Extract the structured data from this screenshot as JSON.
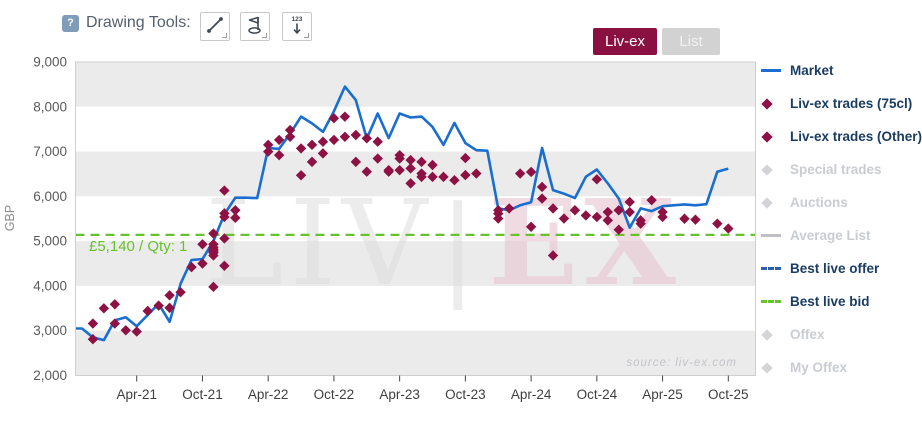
{
  "toolbar": {
    "help_label": "?",
    "label": "Drawing Tools:",
    "tools": [
      "trend-line",
      "flag",
      "numbered-arrow"
    ]
  },
  "view_toggle": {
    "options": [
      "Liv-ex",
      "List"
    ],
    "active": "Liv-ex"
  },
  "legend": [
    {
      "label": "Market",
      "type": "line",
      "color": "#1a6ed0",
      "active": true
    },
    {
      "label": "Liv-ex trades (75cl)",
      "type": "diamond",
      "color": "#8e1144",
      "active": true
    },
    {
      "label": "Liv-ex trades (Other)",
      "type": "diamond",
      "color": "#8e1144",
      "active": true
    },
    {
      "label": "Special trades",
      "type": "diamond",
      "color": "#d4d4d8",
      "active": false
    },
    {
      "label": "Auctions",
      "type": "diamond",
      "color": "#d4d4d8",
      "active": false
    },
    {
      "label": "Average List",
      "type": "line",
      "color": "#c0c0c4",
      "active": false
    },
    {
      "label": "Best live offer",
      "type": "dash",
      "color": "#2b5fb0",
      "active": true
    },
    {
      "label": "Best live bid",
      "type": "dash",
      "color": "#67c22d",
      "active": true
    },
    {
      "label": "Offex",
      "type": "diamond",
      "color": "#d4d4d8",
      "active": false
    },
    {
      "label": "My Offex",
      "type": "diamond",
      "color": "#d4d4d8",
      "active": false
    }
  ],
  "chart_data": {
    "type": "line",
    "title": "",
    "xlabel": "",
    "ylabel": "GBP",
    "ylim": [
      2000,
      9000
    ],
    "yticks": [
      2000,
      3000,
      4000,
      5000,
      6000,
      7000,
      8000,
      9000
    ],
    "xticks": [
      "Apr-21",
      "Oct-21",
      "Apr-22",
      "Oct-22",
      "Apr-23",
      "Oct-23",
      "Apr-24",
      "Oct-24",
      "Apr-25",
      "Oct-25"
    ],
    "grid": "alternating-bands",
    "legend_position": "right",
    "watermark": {
      "left": "LIV",
      "bar": "|",
      "right": "EX"
    },
    "source": "source: liv-ex.com",
    "best_live_bid": {
      "value": 5140,
      "qty": 1,
      "label": "£5,140 / Qty: 1",
      "color": "#67c22d"
    },
    "series": [
      {
        "name": "Market",
        "kind": "line",
        "color": "#1a6ed0",
        "points": [
          [
            "Oct-20",
            3050
          ],
          [
            "Nov-20",
            3050
          ],
          [
            "Dec-20",
            2850
          ],
          [
            "Jan-21",
            2790
          ],
          [
            "Feb-21",
            3230
          ],
          [
            "Mar-21",
            3300
          ],
          [
            "Apr-21",
            3100
          ],
          [
            "May-21",
            3350
          ],
          [
            "Jun-21",
            3600
          ],
          [
            "Jul-21",
            3200
          ],
          [
            "Aug-21",
            4050
          ],
          [
            "Sep-21",
            4580
          ],
          [
            "Oct-21",
            4600
          ],
          [
            "Nov-21",
            5000
          ],
          [
            "Dec-21",
            5600
          ],
          [
            "Jan-22",
            5970
          ],
          [
            "Feb-22",
            5970
          ],
          [
            "Mar-22",
            5960
          ],
          [
            "Apr-22",
            7080
          ],
          [
            "May-22",
            7060
          ],
          [
            "Jun-22",
            7400
          ],
          [
            "Jul-22",
            7780
          ],
          [
            "Aug-22",
            7630
          ],
          [
            "Sep-22",
            7440
          ],
          [
            "Oct-22",
            7900
          ],
          [
            "Nov-22",
            8450
          ],
          [
            "Dec-22",
            8150
          ],
          [
            "Jan-23",
            7290
          ],
          [
            "Feb-23",
            7850
          ],
          [
            "Mar-23",
            7300
          ],
          [
            "Apr-23",
            7850
          ],
          [
            "May-23",
            7760
          ],
          [
            "Jun-23",
            7780
          ],
          [
            "Jul-23",
            7550
          ],
          [
            "Aug-23",
            7150
          ],
          [
            "Sep-23",
            7640
          ],
          [
            "Oct-23",
            7190
          ],
          [
            "Nov-23",
            7030
          ],
          [
            "Dec-23",
            7020
          ],
          [
            "Jan-24",
            5730
          ],
          [
            "Feb-24",
            5690
          ],
          [
            "Mar-24",
            5800
          ],
          [
            "Apr-24",
            5870
          ],
          [
            "May-24",
            7080
          ],
          [
            "Jun-24",
            6140
          ],
          [
            "Jul-24",
            6060
          ],
          [
            "Aug-24",
            5960
          ],
          [
            "Sep-24",
            6440
          ],
          [
            "Oct-24",
            6600
          ],
          [
            "Nov-24",
            6290
          ],
          [
            "Dec-24",
            5950
          ],
          [
            "Jan-25",
            5300
          ],
          [
            "Feb-25",
            5730
          ],
          [
            "Mar-25",
            5670
          ],
          [
            "Apr-25",
            5780
          ],
          [
            "May-25",
            5800
          ],
          [
            "Jun-25",
            5820
          ],
          [
            "Jul-25",
            5800
          ],
          [
            "Aug-25",
            5825
          ],
          [
            "Sep-25",
            6550
          ],
          [
            "Oct-25",
            6620
          ]
        ]
      },
      {
        "name": "Liv-ex trades (75cl & Other)",
        "kind": "scatter",
        "marker": "diamond",
        "color": "#8e1144",
        "points": [
          [
            "Dec-20",
            2810
          ],
          [
            "Dec-20",
            3160
          ],
          [
            "Jan-21",
            3500
          ],
          [
            "Feb-21",
            3160
          ],
          [
            "Feb-21",
            3590
          ],
          [
            "Mar-21",
            3010
          ],
          [
            "Apr-21",
            2980
          ],
          [
            "May-21",
            3440
          ],
          [
            "Jun-21",
            3560
          ],
          [
            "Jul-21",
            3510
          ],
          [
            "Jul-21",
            3790
          ],
          [
            "Aug-21",
            3860
          ],
          [
            "Sep-21",
            4420
          ],
          [
            "Oct-21",
            4500
          ],
          [
            "Oct-21",
            4930
          ],
          [
            "Nov-21",
            3980
          ],
          [
            "Nov-21",
            4820
          ],
          [
            "Nov-21",
            4760
          ],
          [
            "Nov-21",
            4740
          ],
          [
            "Nov-21",
            4860
          ],
          [
            "Nov-21",
            4930
          ],
          [
            "Nov-21",
            4680
          ],
          [
            "Nov-21",
            4800
          ],
          [
            "Nov-21",
            5170
          ],
          [
            "Dec-21",
            5060
          ],
          [
            "Dec-21",
            5540
          ],
          [
            "Dec-21",
            5620
          ],
          [
            "Dec-21",
            4450
          ],
          [
            "Dec-21",
            6130
          ],
          [
            "Jan-22",
            5690
          ],
          [
            "Jan-22",
            5520
          ],
          [
            "Apr-22",
            7000
          ],
          [
            "Apr-22",
            7150
          ],
          [
            "May-22",
            6920
          ],
          [
            "May-22",
            7260
          ],
          [
            "Jun-22",
            7330
          ],
          [
            "Jun-22",
            7480
          ],
          [
            "Jul-22",
            7070
          ],
          [
            "Jul-22",
            6470
          ],
          [
            "Aug-22",
            7150
          ],
          [
            "Aug-22",
            6770
          ],
          [
            "Sep-22",
            6960
          ],
          [
            "Sep-22",
            7220
          ],
          [
            "Oct-22",
            7260
          ],
          [
            "Oct-22",
            7745
          ],
          [
            "Nov-22",
            7780
          ],
          [
            "Nov-22",
            7330
          ],
          [
            "Dec-22",
            7370
          ],
          [
            "Dec-22",
            6770
          ],
          [
            "Jan-23",
            7295
          ],
          [
            "Jan-23",
            6550
          ],
          [
            "Feb-23",
            6845
          ],
          [
            "Feb-23",
            7220
          ],
          [
            "Mar-23",
            6585
          ],
          [
            "Mar-23",
            6550
          ],
          [
            "Apr-23",
            6845
          ],
          [
            "Apr-23",
            6920
          ],
          [
            "Apr-23",
            6585
          ],
          [
            "May-23",
            6810
          ],
          [
            "May-23",
            6290
          ],
          [
            "May-23",
            6625
          ],
          [
            "Jun-23",
            6435
          ],
          [
            "Jun-23",
            6510
          ],
          [
            "Jun-23",
            6770
          ],
          [
            "Jul-23",
            6435
          ],
          [
            "Jul-23",
            6700
          ],
          [
            "Aug-23",
            6435
          ],
          [
            "Sep-23",
            6360
          ],
          [
            "Oct-23",
            6855
          ],
          [
            "Oct-23",
            6475
          ],
          [
            "Nov-23",
            6510
          ],
          [
            "Jan-24",
            5690
          ],
          [
            "Jan-24",
            5505
          ],
          [
            "Jan-24",
            5615
          ],
          [
            "Feb-24",
            5730
          ],
          [
            "Mar-24",
            6510
          ],
          [
            "Apr-24",
            5320
          ],
          [
            "Apr-24",
            6545
          ],
          [
            "May-24",
            6210
          ],
          [
            "May-24",
            5950
          ],
          [
            "Jun-24",
            5730
          ],
          [
            "Jun-24",
            4680
          ],
          [
            "Jul-24",
            5505
          ],
          [
            "Aug-24",
            5690
          ],
          [
            "Sep-24",
            5575
          ],
          [
            "Oct-24",
            5540
          ],
          [
            "Oct-24",
            6380
          ],
          [
            "Nov-24",
            5650
          ],
          [
            "Nov-24",
            5465
          ],
          [
            "Dec-24",
            5255
          ],
          [
            "Dec-24",
            5690
          ],
          [
            "Jan-25",
            5875
          ],
          [
            "Jan-25",
            5650
          ],
          [
            "Feb-25",
            5465
          ],
          [
            "Feb-25",
            5390
          ],
          [
            "Mar-25",
            5915
          ],
          [
            "Apr-25",
            5540
          ],
          [
            "Apr-25",
            5650
          ],
          [
            "Jun-25",
            5500
          ],
          [
            "Jul-25",
            5480
          ],
          [
            "Sep-25",
            5390
          ],
          [
            "Oct-25",
            5280
          ]
        ]
      }
    ],
    "colors": {
      "band_gray": "#ebebeb",
      "plot_border": "#cfcfcf",
      "x_label": "#3f3f3f",
      "y_label": "#5a5a5a",
      "axis_unit": "#8a8a8a",
      "source_text": "#c4c4ca",
      "watermark_gray": "#dcdcdc",
      "watermark_red": "#e8c7d4"
    }
  }
}
